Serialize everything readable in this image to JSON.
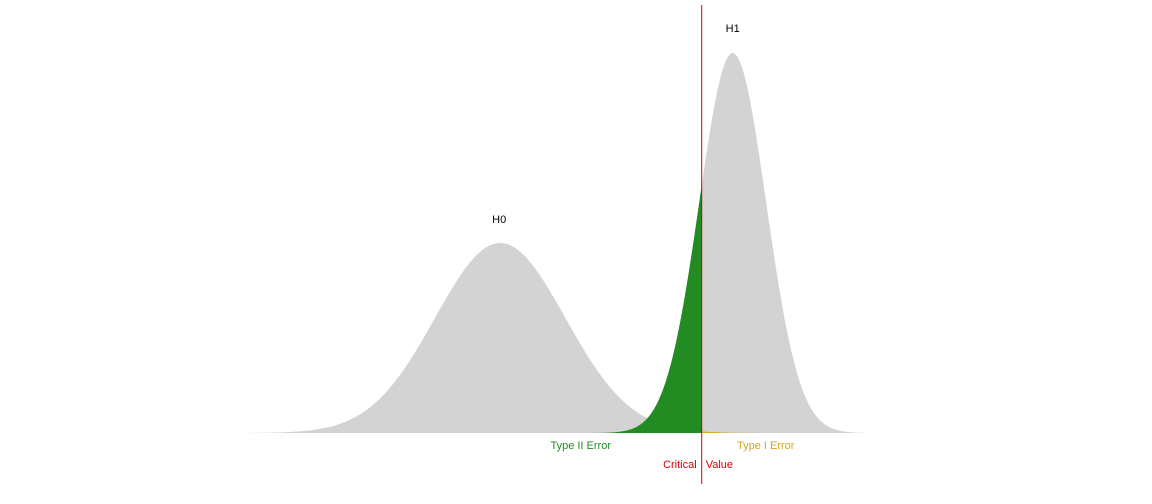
{
  "chart_data": {
    "type": "area",
    "title": "",
    "xlabel": "",
    "ylabel": "",
    "xlim": [
      0,
      100
    ],
    "ylim": [
      0,
      1
    ],
    "grid": false,
    "curves": [
      {
        "name": "H0",
        "mean": 41,
        "sd": 10.5,
        "peak": 0.5,
        "color": "#d3d3d3"
      },
      {
        "name": "H1",
        "mean": 78.5,
        "sd": 5.4,
        "peak": 1.0,
        "color": "#d3d3d3"
      }
    ],
    "critical_value": {
      "x": 73.5,
      "label_left": "Critical",
      "label_right": "Value",
      "color": "#dd0000"
    },
    "regions": {
      "type_ii": {
        "label": "Type II Error",
        "color": "#228b22",
        "curve": "H1",
        "side": "left"
      },
      "type_i": {
        "label": "Type I Error",
        "color": "#daa520",
        "curve": "H0",
        "side": "right"
      }
    }
  }
}
